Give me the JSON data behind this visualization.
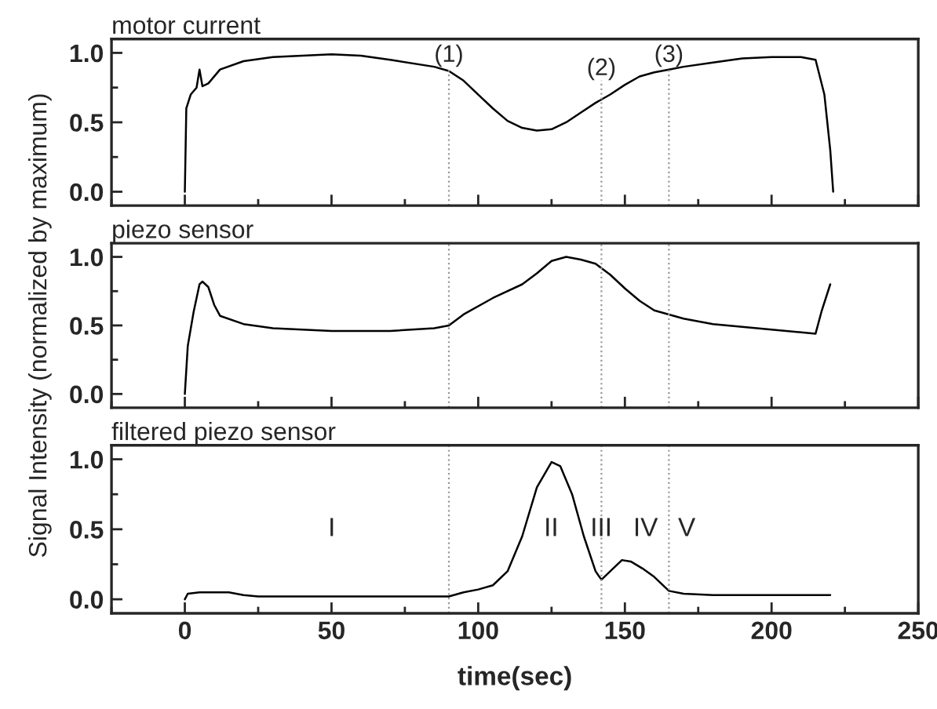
{
  "chart_data": [
    {
      "type": "line",
      "title": "motor current",
      "tick_labels": "y",
      "x": [
        0,
        0.5,
        2,
        4,
        5,
        6,
        8,
        12,
        20,
        30,
        50,
        60,
        70,
        85,
        90,
        95,
        100,
        105,
        110,
        115,
        120,
        125,
        130,
        135,
        140,
        145,
        150,
        155,
        160,
        165,
        170,
        180,
        190,
        200,
        210,
        215,
        218,
        220,
        221
      ],
      "series": [
        {
          "color": "#000000",
          "values": [
            0,
            0.6,
            0.7,
            0.75,
            0.88,
            0.76,
            0.78,
            0.88,
            0.94,
            0.97,
            0.99,
            0.98,
            0.95,
            0.9,
            0.87,
            0.8,
            0.7,
            0.6,
            0.51,
            0.46,
            0.44,
            0.45,
            0.5,
            0.57,
            0.64,
            0.7,
            0.77,
            0.83,
            0.86,
            0.88,
            0.9,
            0.93,
            0.96,
            0.97,
            0.97,
            0.95,
            0.7,
            0.3,
            0.0
          ]
        }
      ],
      "xlim": [
        -25,
        250
      ],
      "xticks": [
        0,
        50,
        100,
        150,
        200,
        250
      ],
      "ylim": [
        -0.1,
        1.1
      ],
      "yticks": [
        {
          "value": 0,
          "label": "0.0"
        },
        {
          "value": 0.5,
          "label": "0.5"
        },
        {
          "value": 1,
          "label": "1.0"
        }
      ],
      "ref_lines": [
        {
          "axis": "x",
          "value": 90,
          "color": "#999999",
          "line_style": "dotted"
        },
        {
          "axis": "x",
          "value": 142,
          "color": "#999999",
          "line_style": "dotted"
        },
        {
          "axis": "x",
          "value": 165,
          "color": "#999999",
          "line_style": "dotted"
        }
      ],
      "annotations": [
        "(1)",
        "(2)",
        "(3)"
      ]
    },
    {
      "type": "line",
      "title": "piezo sensor",
      "tick_labels": "y",
      "ylabel": "Signal Intensity (normalized by maximum)",
      "x": [
        0,
        1,
        3,
        5,
        6,
        8,
        10,
        12,
        20,
        30,
        50,
        70,
        85,
        90,
        95,
        105,
        115,
        120,
        125,
        130,
        135,
        140,
        145,
        150,
        155,
        160,
        170,
        180,
        200,
        215,
        217,
        220
      ],
      "series": [
        {
          "color": "#000000",
          "values": [
            0,
            0.35,
            0.6,
            0.8,
            0.82,
            0.78,
            0.65,
            0.57,
            0.51,
            0.48,
            0.46,
            0.46,
            0.48,
            0.5,
            0.58,
            0.7,
            0.8,
            0.88,
            0.97,
            1.0,
            0.98,
            0.95,
            0.87,
            0.77,
            0.68,
            0.61,
            0.55,
            0.51,
            0.47,
            0.44,
            0.6,
            0.8
          ]
        }
      ],
      "xlim": [
        -25,
        250
      ],
      "xticks": [
        0,
        50,
        100,
        150,
        200,
        250
      ],
      "ylim": [
        -0.1,
        1.1
      ],
      "yticks": [
        {
          "value": 0,
          "label": "0.0"
        },
        {
          "value": 0.5,
          "label": "0.5"
        },
        {
          "value": 1,
          "label": "1.0"
        }
      ],
      "ref_lines": [
        {
          "axis": "x",
          "value": 90,
          "color": "#999999",
          "line_style": "dotted"
        },
        {
          "axis": "x",
          "value": 142,
          "color": "#999999",
          "line_style": "dotted"
        },
        {
          "axis": "x",
          "value": 165,
          "color": "#999999",
          "line_style": "dotted"
        }
      ]
    },
    {
      "type": "line",
      "title": "filtered piezo sensor",
      "xlabel": "time(sec)",
      "x": [
        0,
        1,
        5,
        15,
        20,
        25,
        50,
        88,
        90,
        95,
        100,
        105,
        110,
        115,
        120,
        125,
        128,
        132,
        136,
        140,
        142,
        145,
        149,
        152,
        156,
        160,
        165,
        170,
        180,
        200,
        220
      ],
      "series": [
        {
          "color": "#000000",
          "values": [
            0,
            0.04,
            0.05,
            0.05,
            0.03,
            0.02,
            0.02,
            0.02,
            0.02,
            0.05,
            0.07,
            0.1,
            0.2,
            0.45,
            0.8,
            0.98,
            0.95,
            0.75,
            0.45,
            0.2,
            0.14,
            0.2,
            0.28,
            0.27,
            0.22,
            0.16,
            0.06,
            0.04,
            0.03,
            0.03,
            0.03
          ]
        }
      ],
      "xlim": [
        -25,
        250
      ],
      "xticks": [
        0,
        50,
        100,
        150,
        200,
        250
      ],
      "ylim": [
        -0.1,
        1.1
      ],
      "yticks": [
        {
          "value": 0,
          "label": "0.0"
        },
        {
          "value": 0.5,
          "label": "0.5"
        },
        {
          "value": 1,
          "label": "1.0"
        }
      ],
      "ref_lines": [
        {
          "axis": "x",
          "value": 90,
          "color": "#999999",
          "line_style": "dotted"
        },
        {
          "axis": "x",
          "value": 142,
          "color": "#999999",
          "line_style": "dotted"
        },
        {
          "axis": "x",
          "value": 165,
          "color": "#999999",
          "line_style": "dotted"
        }
      ],
      "annotations": [
        "I",
        "II",
        "III",
        "IV",
        "V"
      ]
    }
  ]
}
